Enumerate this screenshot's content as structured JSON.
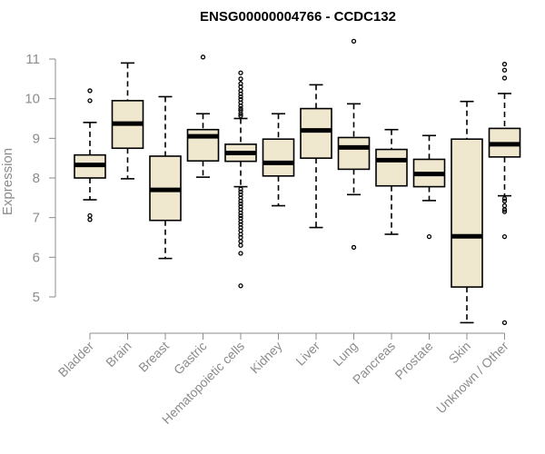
{
  "chart_data": {
    "type": "boxplot",
    "title": "ENSG00000004766 - CCDC132",
    "xlabel": "",
    "ylabel": "Expression",
    "ylim": [
      4.2,
      11.6
    ],
    "yticks": [
      5,
      6,
      7,
      8,
      9,
      10,
      11
    ],
    "box_color": "#efe8cf",
    "categories": [
      "Bladder",
      "Brain",
      "Breast",
      "Gastric",
      "Hematopoietic cells",
      "Kidney",
      "Liver",
      "Lung",
      "Pancreas",
      "Prostate",
      "Skin",
      "Unknown / Other"
    ],
    "boxes": [
      {
        "name": "Bladder",
        "whislo": 7.45,
        "q1": 8.0,
        "med": 8.33,
        "q3": 8.58,
        "whishi": 9.4,
        "outliers": [
          10.2,
          9.95,
          7.05,
          6.95
        ]
      },
      {
        "name": "Brain",
        "whislo": 7.98,
        "q1": 8.75,
        "med": 9.37,
        "q3": 9.95,
        "whishi": 10.9,
        "outliers": []
      },
      {
        "name": "Breast",
        "whislo": 5.97,
        "q1": 6.93,
        "med": 7.7,
        "q3": 8.55,
        "whishi": 10.05,
        "outliers": []
      },
      {
        "name": "Gastric",
        "whislo": 8.02,
        "q1": 8.43,
        "med": 9.05,
        "q3": 9.22,
        "whishi": 9.62,
        "outliers": [
          11.05
        ]
      },
      {
        "name": "Hematopoietic cells",
        "whislo": 7.78,
        "q1": 8.42,
        "med": 8.63,
        "q3": 8.85,
        "whishi": 9.5,
        "outliers": [
          10.65,
          10.5,
          10.38,
          10.3,
          10.2,
          10.12,
          10.05,
          9.98,
          9.9,
          9.82,
          9.75,
          9.7,
          9.62,
          9.57,
          7.72,
          7.65,
          7.58,
          7.5,
          7.42,
          7.35,
          7.28,
          7.2,
          7.12,
          7.05,
          6.98,
          6.9,
          6.83,
          6.75,
          6.67,
          6.58,
          6.5,
          6.4,
          6.3,
          6.1,
          5.28
        ]
      },
      {
        "name": "Kidney",
        "whislo": 7.3,
        "q1": 8.05,
        "med": 8.38,
        "q3": 8.98,
        "whishi": 9.62,
        "outliers": []
      },
      {
        "name": "Liver",
        "whislo": 6.75,
        "q1": 8.5,
        "med": 9.2,
        "q3": 9.75,
        "whishi": 10.35,
        "outliers": []
      },
      {
        "name": "Lung",
        "whislo": 7.58,
        "q1": 8.22,
        "med": 8.77,
        "q3": 9.02,
        "whishi": 9.87,
        "outliers": [
          11.45,
          6.25
        ]
      },
      {
        "name": "Pancreas",
        "whislo": 6.58,
        "q1": 7.8,
        "med": 8.45,
        "q3": 8.72,
        "whishi": 9.22,
        "outliers": []
      },
      {
        "name": "Prostate",
        "whislo": 7.43,
        "q1": 7.78,
        "med": 8.1,
        "q3": 8.47,
        "whishi": 9.07,
        "outliers": [
          6.52
        ]
      },
      {
        "name": "Skin",
        "whislo": 4.35,
        "q1": 5.25,
        "med": 6.53,
        "q3": 8.98,
        "whishi": 9.93,
        "outliers": []
      },
      {
        "name": "Unknown / Other",
        "whislo": 7.55,
        "q1": 8.53,
        "med": 8.85,
        "q3": 9.25,
        "whishi": 10.13,
        "outliers": [
          10.87,
          10.72,
          10.52,
          7.48,
          7.42,
          7.3,
          7.2,
          7.15,
          6.52,
          4.35
        ]
      }
    ]
  }
}
